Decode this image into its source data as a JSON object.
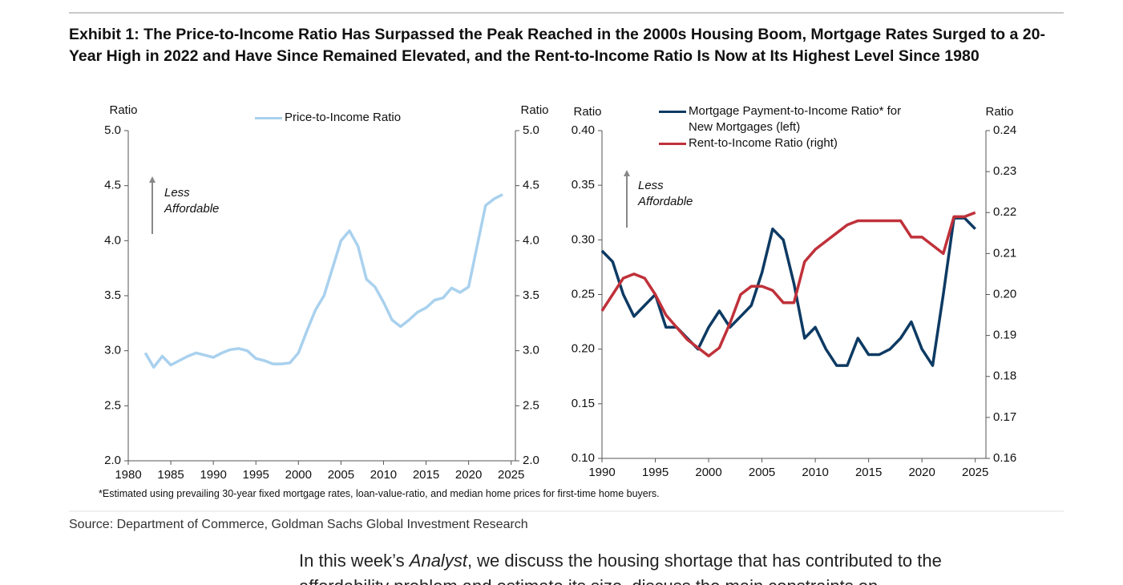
{
  "header": {
    "title": "Exhibit 1: The Price-to-Income Ratio Has Surpassed the Peak Reached in the 2000s Housing Boom, Mortgage Rates Surged to a 20-Year High in 2022 and Have Since Remained Elevated, and the Rent-to-Income Ratio Is Now at Its Highest Level Since 1980"
  },
  "chart_data": [
    {
      "type": "line",
      "ylabel": "Ratio",
      "y2label": "Ratio",
      "annotation": [
        "Less",
        "Affordable"
      ],
      "x": [
        1982,
        1983,
        1984,
        1985,
        1986,
        1987,
        1988,
        1989,
        1990,
        1991,
        1992,
        1993,
        1994,
        1995,
        1996,
        1997,
        1998,
        1999,
        2000,
        2001,
        2002,
        2003,
        2004,
        2005,
        2006,
        2007,
        2008,
        2009,
        2010,
        2011,
        2012,
        2013,
        2014,
        2015,
        2016,
        2017,
        2018,
        2019,
        2020,
        2021,
        2022,
        2023,
        2024
      ],
      "series": [
        {
          "name": "Price-to-Income Ratio",
          "color": "#a9d1ee",
          "values": [
            2.98,
            2.85,
            2.95,
            2.87,
            2.91,
            2.95,
            2.98,
            2.96,
            2.94,
            2.98,
            3.01,
            3.02,
            3.0,
            2.93,
            2.91,
            2.88,
            2.88,
            2.89,
            2.98,
            3.18,
            3.37,
            3.5,
            3.75,
            4.0,
            4.09,
            3.95,
            3.65,
            3.58,
            3.44,
            3.28,
            3.22,
            3.28,
            3.35,
            3.39,
            3.46,
            3.48,
            3.57,
            3.53,
            3.58,
            3.95,
            4.32,
            4.38,
            4.42
          ]
        }
      ],
      "xlim": [
        1980,
        2025.5
      ],
      "xticks": [
        1980,
        1985,
        1990,
        1995,
        2000,
        2005,
        2010,
        2015,
        2020,
        2025
      ],
      "ylim": [
        2,
        5
      ],
      "yticks": [
        {
          "value": 2,
          "label": "2.0"
        },
        {
          "value": 2.5,
          "label": "2.5"
        },
        {
          "value": 3,
          "label": "3.0"
        },
        {
          "value": 3.5,
          "label": "3.5"
        },
        {
          "value": 4,
          "label": "4.0"
        },
        {
          "value": 4.5,
          "label": "4.5"
        },
        {
          "value": 5,
          "label": "5.0"
        }
      ],
      "y2lim": [
        2,
        5
      ],
      "y2ticks": [
        {
          "value": 2,
          "label": "2.0"
        },
        {
          "value": 2.5,
          "label": "2.5"
        },
        {
          "value": 3,
          "label": "3.0"
        },
        {
          "value": 3.5,
          "label": "3.5"
        },
        {
          "value": 4,
          "label": "4.0"
        },
        {
          "value": 4.5,
          "label": "4.5"
        },
        {
          "value": 5,
          "label": "5.0"
        }
      ]
    },
    {
      "type": "line",
      "ylabel": "Ratio",
      "y2label": "Ratio",
      "annotation": [
        "Less",
        "Affordable"
      ],
      "x": [
        1990,
        1991,
        1992,
        1993,
        1994,
        1995,
        1996,
        1997,
        1998,
        1999,
        2000,
        2001,
        2002,
        2003,
        2004,
        2005,
        2006,
        2007,
        2008,
        2009,
        2010,
        2011,
        2012,
        2013,
        2014,
        2015,
        2016,
        2017,
        2018,
        2019,
        2020,
        2021,
        2022,
        2023,
        2024,
        2025
      ],
      "series": [
        {
          "name": "Mortgage Payment-to-Income Ratio* for New Mortgages (left)",
          "color": "#0d3a63",
          "values": [
            0.29,
            0.28,
            0.25,
            0.23,
            0.24,
            0.25,
            0.22,
            0.22,
            0.21,
            0.2,
            0.22,
            0.235,
            0.22,
            0.23,
            0.24,
            0.27,
            0.31,
            0.3,
            0.26,
            0.21,
            0.22,
            0.2,
            0.185,
            0.185,
            0.21,
            0.195,
            0.195,
            0.2,
            0.21,
            0.225,
            0.2,
            0.185,
            0.25,
            0.32,
            0.32,
            0.31
          ]
        },
        {
          "name": "Rent-to-Income Ratio (right)",
          "color": "#c0313a",
          "axis": "y2",
          "values": [
            0.196,
            0.2,
            0.204,
            0.205,
            0.204,
            0.2,
            0.195,
            0.192,
            0.189,
            0.187,
            0.185,
            0.187,
            0.193,
            0.2,
            0.202,
            0.202,
            0.201,
            0.198,
            0.198,
            0.208,
            0.211,
            0.213,
            0.215,
            0.217,
            0.218,
            0.218,
            0.218,
            0.218,
            0.218,
            0.214,
            0.214,
            0.212,
            0.21,
            0.219,
            0.219,
            0.22
          ]
        }
      ],
      "xlim": [
        1990,
        2026
      ],
      "xticks": [
        1990,
        1995,
        2000,
        2005,
        2010,
        2015,
        2020,
        2025
      ],
      "ylim": [
        0.1,
        0.4
      ],
      "yticks": [
        {
          "value": 0.1,
          "label": "0.10"
        },
        {
          "value": 0.15,
          "label": "0.15"
        },
        {
          "value": 0.2,
          "label": "0.20"
        },
        {
          "value": 0.25,
          "label": "0.25"
        },
        {
          "value": 0.3,
          "label": "0.30"
        },
        {
          "value": 0.35,
          "label": "0.35"
        },
        {
          "value": 0.4,
          "label": "0.40"
        }
      ],
      "y2lim": [
        0.16,
        0.24
      ],
      "y2ticks": [
        0.16,
        0.17,
        0.18,
        0.19,
        {
          "value": 0.2,
          "label": "0.20"
        },
        0.21,
        0.22,
        0.23,
        0.24
      ]
    }
  ],
  "footnote": "*Estimated using prevailing 30-year fixed mortgage rates, loan-value-ratio, and median home prices for first-time home buyers.",
  "source": "Source: Department of Commerce, Goldman Sachs Global Investment Research",
  "body": [
    "In this week’s ",
    "Analyst",
    ", we discuss the housing shortage that has contributed to the affordability problem and estimate its size, discuss the main constraints on"
  ]
}
